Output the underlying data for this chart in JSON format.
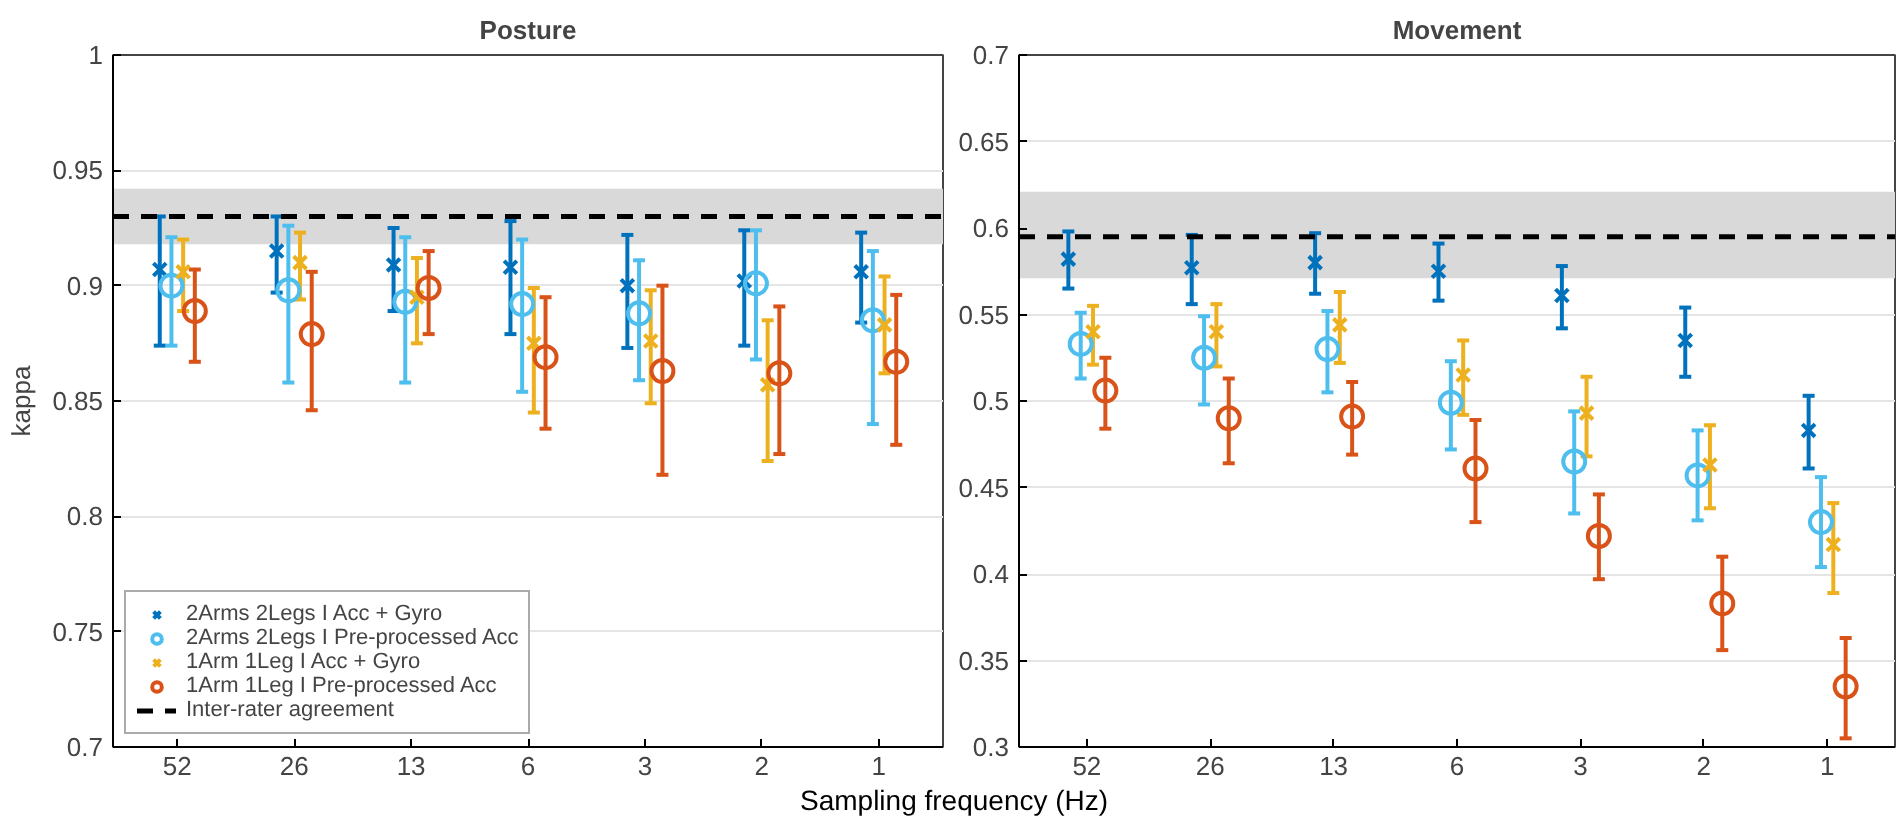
{
  "chart_data": [
    {
      "type": "scatter",
      "title": "Posture",
      "xlabel": "Sampling frequency (Hz)",
      "ylabel": "kappa",
      "categories": [
        "52",
        "26",
        "13",
        "6",
        "3",
        "2",
        "1"
      ],
      "ylim": [
        0.7,
        1
      ],
      "yticks": [
        0.7,
        0.75,
        0.8,
        0.85,
        0.9,
        0.95,
        1
      ],
      "grid": "y",
      "legend": "bottom left",
      "series": [
        {
          "name": "2Arms 2Legs I Acc + Gyro",
          "color": "#0072bd",
          "marker": "cross",
          "values": [
            0.907,
            0.915,
            0.909,
            0.908,
            0.9,
            0.902,
            0.906
          ],
          "errors": [
            [
              0.874,
              0.93
            ],
            [
              0.897,
              0.93
            ],
            [
              0.889,
              0.925
            ],
            [
              0.879,
              0.928
            ],
            [
              0.873,
              0.922
            ],
            [
              0.874,
              0.924
            ],
            [
              0.884,
              0.923
            ]
          ]
        },
        {
          "name": "2Arms 2Legs I Pre-processed Acc",
          "color": "#4dbeee",
          "marker": "circle",
          "values": [
            0.9,
            0.898,
            0.893,
            0.892,
            0.888,
            0.901,
            0.885
          ],
          "errors": [
            [
              0.874,
              0.921
            ],
            [
              0.858,
              0.926
            ],
            [
              0.858,
              0.921
            ],
            [
              0.854,
              0.92
            ],
            [
              0.859,
              0.911
            ],
            [
              0.868,
              0.924
            ],
            [
              0.84,
              0.915
            ]
          ]
        },
        {
          "name": "1Arm 1Leg I Acc + Gyro",
          "color": "#edb120",
          "marker": "cross",
          "values": [
            0.906,
            0.91,
            0.895,
            0.875,
            0.876,
            0.857,
            0.883
          ],
          "errors": [
            [
              0.889,
              0.92
            ],
            [
              0.894,
              0.923
            ],
            [
              0.875,
              0.912
            ],
            [
              0.845,
              0.899
            ],
            [
              0.849,
              0.898
            ],
            [
              0.824,
              0.885
            ],
            [
              0.862,
              0.904
            ]
          ]
        },
        {
          "name": "1Arm 1Leg I Pre-processed Acc",
          "color": "#d95319",
          "marker": "circle",
          "values": [
            0.889,
            0.879,
            0.899,
            0.869,
            0.863,
            0.862,
            0.867
          ],
          "errors": [
            [
              0.867,
              0.907
            ],
            [
              0.846,
              0.906
            ],
            [
              0.879,
              0.915
            ],
            [
              0.838,
              0.895
            ],
            [
              0.818,
              0.9
            ],
            [
              0.827,
              0.891
            ],
            [
              0.831,
              0.896
            ]
          ]
        }
      ],
      "ref_lines": [
        {
          "axis": "y",
          "value": 0.93,
          "label": "Inter-rater agreement",
          "color": "#000000",
          "line_style": "dashed"
        }
      ],
      "bands": [
        {
          "axis": "y",
          "from": 0.918,
          "to": 0.942,
          "color": "#d9d9d9"
        }
      ]
    },
    {
      "type": "scatter",
      "title": "Movement",
      "categories": [
        "52",
        "26",
        "13",
        "6",
        "3",
        "2",
        "1"
      ],
      "ylim": [
        0.3,
        0.7
      ],
      "yticks": [
        0.3,
        0.35,
        0.4,
        0.45,
        0.5,
        0.55,
        0.6,
        0.65,
        0.7
      ],
      "grid": "y",
      "series": [
        {
          "color": "#0072bd",
          "marker": "cross",
          "values": [
            0.582,
            0.577,
            0.58,
            0.575,
            0.561,
            0.535,
            0.483
          ],
          "errors": [
            [
              0.565,
              0.598
            ],
            [
              0.556,
              0.596
            ],
            [
              0.562,
              0.597
            ],
            [
              0.558,
              0.591
            ],
            [
              0.542,
              0.578
            ],
            [
              0.514,
              0.554
            ],
            [
              0.461,
              0.503
            ]
          ]
        },
        {
          "color": "#4dbeee",
          "marker": "circle",
          "values": [
            0.533,
            0.525,
            0.53,
            0.499,
            0.465,
            0.457,
            0.43
          ],
          "errors": [
            [
              0.513,
              0.551
            ],
            [
              0.498,
              0.549
            ],
            [
              0.505,
              0.552
            ],
            [
              0.472,
              0.523
            ],
            [
              0.435,
              0.494
            ],
            [
              0.431,
              0.483
            ],
            [
              0.404,
              0.456
            ]
          ]
        },
        {
          "color": "#edb120",
          "marker": "cross",
          "values": [
            0.54,
            0.54,
            0.544,
            0.515,
            0.493,
            0.463,
            0.417
          ],
          "errors": [
            [
              0.521,
              0.555
            ],
            [
              0.52,
              0.556
            ],
            [
              0.522,
              0.563
            ],
            [
              0.492,
              0.535
            ],
            [
              0.468,
              0.514
            ],
            [
              0.438,
              0.486
            ],
            [
              0.389,
              0.441
            ]
          ]
        },
        {
          "color": "#d95319",
          "marker": "circle",
          "values": [
            0.506,
            0.49,
            0.491,
            0.461,
            0.422,
            0.383,
            0.335
          ],
          "errors": [
            [
              0.484,
              0.525
            ],
            [
              0.464,
              0.513
            ],
            [
              0.469,
              0.511
            ],
            [
              0.43,
              0.489
            ],
            [
              0.397,
              0.446
            ],
            [
              0.356,
              0.41
            ],
            [
              0.305,
              0.363
            ]
          ]
        }
      ],
      "ref_lines": [
        {
          "axis": "y",
          "value": 0.595,
          "color": "#000000",
          "line_style": "dashed"
        }
      ],
      "bands": [
        {
          "axis": "y",
          "from": 0.571,
          "to": 0.621,
          "color": "#d9d9d9"
        }
      ]
    }
  ]
}
